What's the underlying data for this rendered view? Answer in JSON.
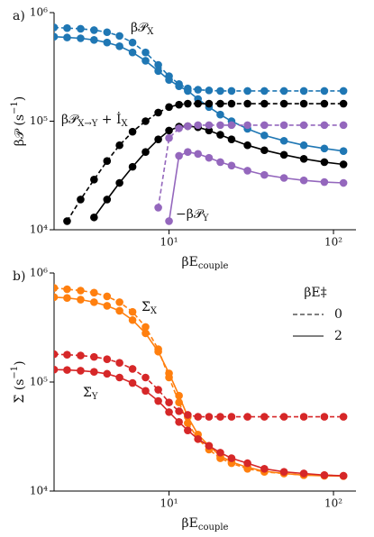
{
  "chart_data": [
    {
      "type": "line",
      "panel_label": "a)",
      "xscale": "log",
      "yscale": "log",
      "xlabel": {
        "parts": [
          {
            "text": "βE"
          },
          {
            "text": "couple",
            "shift": "sub"
          }
        ]
      },
      "ylabel": {
        "parts": [
          {
            "text": "β𝒫 (s"
          },
          {
            "text": "−1",
            "shift": "sup"
          },
          {
            "text": ")"
          }
        ]
      },
      "xlim": [
        2,
        137
      ],
      "ylim": [
        10000,
        1000000
      ],
      "xticks": [
        {
          "value": 10,
          "label": "10¹"
        },
        {
          "value": 100,
          "label": "10²"
        }
      ],
      "yticks": [
        {
          "value": 10000,
          "label": "10⁴"
        },
        {
          "value": 100000,
          "label": "10⁵"
        },
        {
          "value": 1000000,
          "label": "10⁶"
        }
      ],
      "x": [
        2,
        2.4,
        2.9,
        3.5,
        4.2,
        5,
        6,
        7.2,
        8.6,
        10,
        11.5,
        13,
        15,
        17.5,
        20.5,
        24,
        30,
        38,
        50,
        66,
        88,
        115
      ],
      "series": [
        {
          "color": "#1f77b4",
          "dashed": true,
          "values": [
            730000,
            720000,
            710000,
            690000,
            660000,
            610000,
            530000,
            430000,
            330000,
            260000,
            220000,
            200000,
            195000,
            192000,
            190000,
            190000,
            190000,
            190000,
            190000,
            190000,
            190000,
            190000
          ]
        },
        {
          "color": "#1f77b4",
          "dashed": false,
          "values": [
            600000,
            590000,
            580000,
            560000,
            530000,
            490000,
            430000,
            360000,
            290000,
            240000,
            210000,
            190000,
            160000,
            135000,
            115000,
            100000,
            85000,
            74000,
            66000,
            60000,
            56000,
            53000
          ]
        },
        {
          "color": "#000000",
          "dashed": true,
          "values": [
            null,
            12000,
            19000,
            29000,
            43000,
            60000,
            80000,
            100000,
            120000,
            135000,
            142000,
            145000,
            145000,
            145000,
            145000,
            145000,
            145000,
            145000,
            145000,
            145000,
            145000,
            145000
          ]
        },
        {
          "color": "#000000",
          "dashed": false,
          "values": [
            null,
            null,
            null,
            13000,
            19000,
            27000,
            38000,
            52000,
            68000,
            82000,
            89000,
            90000,
            88000,
            82000,
            75000,
            68000,
            60000,
            54000,
            49000,
            45000,
            42000,
            40000
          ]
        },
        {
          "color": "#9467bd",
          "dashed": true,
          "values": [
            null,
            null,
            null,
            null,
            null,
            null,
            null,
            null,
            16000,
            70000,
            86000,
            90000,
            92000,
            92000,
            92000,
            92000,
            92000,
            92000,
            92000,
            92000,
            92000,
            92000
          ]
        },
        {
          "color": "#9467bd",
          "dashed": false,
          "values": [
            null,
            null,
            null,
            null,
            null,
            null,
            null,
            null,
            null,
            12000,
            48000,
            52000,
            50000,
            46000,
            42000,
            39000,
            35000,
            32000,
            30000,
            28500,
            27500,
            27000
          ]
        }
      ],
      "annotations": [
        {
          "color": "#1f77b4",
          "parts": [
            {
              "text": "β𝒫"
            },
            {
              "text": "X",
              "shift": "sub"
            }
          ]
        },
        {
          "color": "#000000",
          "parts": [
            {
              "text": "β𝒫"
            },
            {
              "text": "X→Y",
              "shift": "sub"
            },
            {
              "text": " + İ"
            },
            {
              "text": "X",
              "shift": "sub"
            }
          ]
        },
        {
          "color": "#9467bd",
          "parts": [
            {
              "text": "−β𝒫"
            },
            {
              "text": "Y",
              "shift": "sub"
            }
          ]
        }
      ]
    },
    {
      "type": "line",
      "panel_label": "b)",
      "xscale": "log",
      "yscale": "log",
      "xlabel": {
        "parts": [
          {
            "text": "βE"
          },
          {
            "text": "couple",
            "shift": "sub"
          }
        ]
      },
      "ylabel": {
        "parts": [
          {
            "text": "Σ̇ (s"
          },
          {
            "text": "−1",
            "shift": "sup"
          },
          {
            "text": ")"
          }
        ]
      },
      "xlim": [
        2,
        137
      ],
      "ylim": [
        10000,
        1000000
      ],
      "xticks": [
        {
          "value": 10,
          "label": "10¹"
        },
        {
          "value": 100,
          "label": "10²"
        }
      ],
      "yticks": [
        {
          "value": 10000,
          "label": "10⁴"
        },
        {
          "value": 100000,
          "label": "10⁵"
        },
        {
          "value": 1000000,
          "label": "10⁶"
        }
      ],
      "x": [
        2,
        2.4,
        2.9,
        3.5,
        4.2,
        5,
        6,
        7.2,
        8.6,
        10,
        11.5,
        13,
        15,
        17.5,
        20.5,
        24,
        30,
        38,
        50,
        66,
        88,
        115
      ],
      "series": [
        {
          "color": "#ff7f0e",
          "dashed": true,
          "values": [
            730000,
            710000,
            690000,
            660000,
            610000,
            540000,
            440000,
            320000,
            200000,
            110000,
            65000,
            42000,
            30000,
            24000,
            20000,
            18000,
            16000,
            15000,
            14500,
            14000,
            14000,
            13800
          ]
        },
        {
          "color": "#ff7f0e",
          "dashed": false,
          "values": [
            600000,
            590000,
            570000,
            540000,
            500000,
            450000,
            370000,
            280000,
            190000,
            120000,
            75000,
            48000,
            33000,
            26000,
            21000,
            18500,
            16500,
            15200,
            14500,
            14000,
            13800,
            13700
          ]
        },
        {
          "color": "#d62728",
          "dashed": true,
          "values": [
            180000,
            178000,
            175000,
            170000,
            162000,
            150000,
            132000,
            110000,
            85000,
            65000,
            54000,
            50000,
            48000,
            48000,
            48000,
            48000,
            48000,
            48000,
            48000,
            48000,
            48000,
            48000
          ]
        },
        {
          "color": "#d62728",
          "dashed": false,
          "values": [
            130000,
            129000,
            127000,
            124000,
            119000,
            110000,
            98000,
            83000,
            67000,
            53000,
            43000,
            36000,
            30000,
            26000,
            22500,
            20000,
            18000,
            16000,
            15000,
            14500,
            14000,
            13800
          ]
        }
      ],
      "annotations": [
        {
          "color": "#ff7f0e",
          "parts": [
            {
              "text": "Σ̇"
            },
            {
              "text": "X",
              "shift": "sub"
            }
          ]
        },
        {
          "color": "#d62728",
          "parts": [
            {
              "text": "Σ̇"
            },
            {
              "text": "Y",
              "shift": "sub"
            }
          ]
        }
      ],
      "legend": {
        "loc": "upper right",
        "title": "βE‡",
        "color": "#808080",
        "entries": [
          {
            "label": "0",
            "dashed": true
          },
          {
            "label": "2",
            "dashed": false
          }
        ]
      }
    }
  ]
}
